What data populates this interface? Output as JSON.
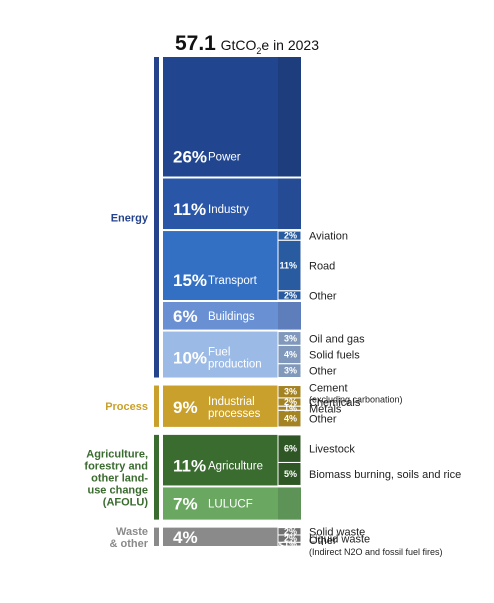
{
  "title": {
    "value": "57.1",
    "unit_prefix": "GtCO",
    "unit_sub": "2",
    "unit_suffix": "e in 2023"
  },
  "chart_data": {
    "type": "stacked-bar",
    "total": 57.1,
    "unit": "GtCO2e",
    "year": "2023",
    "groups": [
      {
        "key": "energy",
        "label_lines": [
          "Energy"
        ],
        "color": "#25428c"
      },
      {
        "key": "process",
        "label_lines": [
          "Process"
        ],
        "color": "#c9a02b"
      },
      {
        "key": "afolu",
        "label_lines": [
          "Agriculture,",
          "forestry and",
          "other land-",
          "use change",
          "(AFOLU)"
        ],
        "color": "#3a6b2f"
      },
      {
        "key": "waste",
        "label_lines": [
          "Waste",
          "& other"
        ],
        "color": "#8a8a8a"
      }
    ],
    "segments": [
      {
        "group": "energy",
        "name_lines": [
          "Power"
        ],
        "pct": 26,
        "pct_label": "26%",
        "color": "#21468f"
      },
      {
        "group": "energy",
        "name_lines": [
          "Industry"
        ],
        "pct": 11,
        "pct_label": "11%",
        "color": "#2a56a8"
      },
      {
        "group": "energy",
        "name_lines": [
          "Transport"
        ],
        "pct": 15,
        "pct_label": "15%",
        "color": "#3370c4",
        "subs": [
          {
            "pct": 2,
            "label": "2%",
            "name": "Aviation"
          },
          {
            "pct": 11,
            "label": "11%",
            "name": "Road"
          },
          {
            "pct": 2,
            "label": "2%",
            "name": "Other"
          }
        ]
      },
      {
        "group": "energy",
        "name_lines": [
          "Buildings"
        ],
        "pct": 6,
        "pct_label": "6%",
        "color": "#6a90d4"
      },
      {
        "group": "energy",
        "name_lines": [
          "Fuel",
          "production"
        ],
        "pct": 10,
        "pct_label": "10%",
        "color": "#9bbae6",
        "subs": [
          {
            "pct": 3,
            "label": "3%",
            "name": "Oil and gas"
          },
          {
            "pct": 4,
            "label": "4%",
            "name": "Solid fuels"
          },
          {
            "pct": 3,
            "label": "3%",
            "name": "Other"
          }
        ]
      },
      {
        "group": "process",
        "name_lines": [
          "Industrial",
          "processes"
        ],
        "pct": 9,
        "pct_label": "9%",
        "color": "#c9a02b",
        "subs": [
          {
            "pct": 3,
            "label": "3%",
            "name": "Cement",
            "note": "(excluding carbonation)"
          },
          {
            "pct": 2,
            "label": "2%",
            "name": "Chemicals"
          },
          {
            "pct": 1,
            "label": "1%",
            "name": "Metals"
          },
          {
            "pct": 4,
            "label": "4%",
            "name": "Other"
          }
        ]
      },
      {
        "group": "afolu",
        "name_lines": [
          "Agriculture"
        ],
        "pct": 11,
        "pct_label": "11%",
        "color": "#3a6b2f",
        "subs": [
          {
            "pct": 6,
            "label": "6%",
            "name": "Livestock"
          },
          {
            "pct": 5,
            "label": "5%",
            "name": "Biomass burning, soils and rice"
          }
        ]
      },
      {
        "group": "afolu",
        "name_lines": [
          "LULUCF"
        ],
        "pct": 7,
        "pct_label": "7%",
        "color": "#6aa862"
      },
      {
        "group": "waste",
        "name_lines": [
          ""
        ],
        "pct": 4,
        "pct_label": "4%",
        "color": "#8a8a8a",
        "subs": [
          {
            "pct": 2,
            "label": "2%",
            "name": "Solid waste"
          },
          {
            "pct": 2,
            "label": "2%",
            "name": "Liquid waste"
          },
          {
            "pct": 1,
            "label": "<1%",
            "name": "Other",
            "note": "(Indirect N2O and fossil fuel fires)"
          }
        ]
      }
    ]
  }
}
